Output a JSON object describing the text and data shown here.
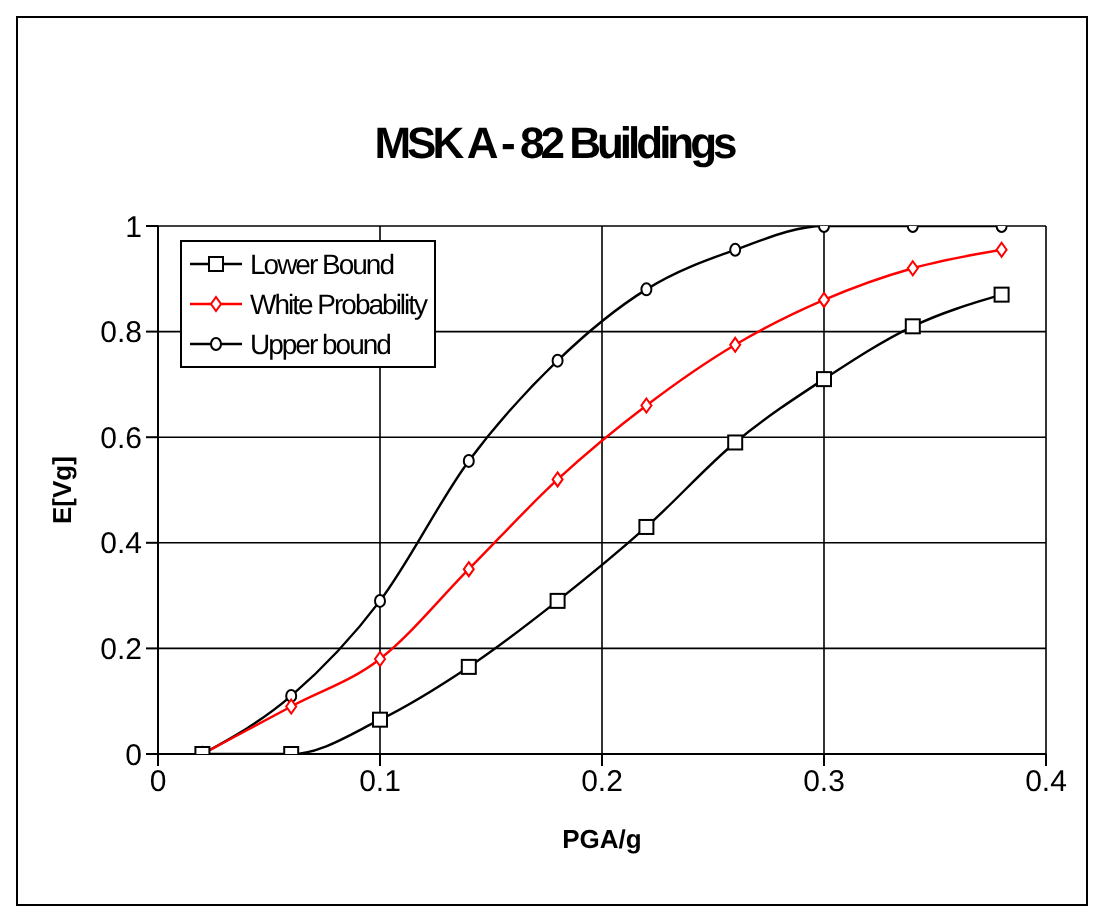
{
  "chart_data": {
    "type": "line",
    "title": "MSK A - 82 Buildings",
    "xlabel": "PGA/g",
    "ylabel": "E[Vg]",
    "x": [
      0.02,
      0.06,
      0.1,
      0.14,
      0.18,
      0.22,
      0.26,
      0.3,
      0.34,
      0.38
    ],
    "series": [
      {
        "name": "Lower Bound",
        "color": "#000000",
        "marker": "square",
        "values": [
          0,
          0,
          0.065,
          0.165,
          0.29,
          0.43,
          0.59,
          0.71,
          0.81,
          0.87
        ]
      },
      {
        "name": "White Probability",
        "color": "#ff0000",
        "marker": "diamond",
        "values": [
          0,
          0.09,
          0.18,
          0.35,
          0.52,
          0.66,
          0.775,
          0.86,
          0.92,
          0.955
        ]
      },
      {
        "name": "Upper bound",
        "color": "#000000",
        "marker": "circle",
        "values": [
          0,
          0.11,
          0.29,
          0.555,
          0.745,
          0.88,
          0.955,
          1,
          1,
          1
        ]
      }
    ],
    "xlim": [
      0,
      0.4
    ],
    "xticks": [
      0,
      0.1,
      0.2,
      0.3,
      0.4
    ],
    "ylim": [
      0,
      1
    ],
    "yticks": [
      0,
      0.2,
      0.4,
      0.6,
      0.8,
      1
    ],
    "grid": true,
    "legend": "top left",
    "line_style": "solid"
  }
}
